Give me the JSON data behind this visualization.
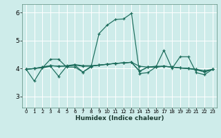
{
  "xlabel": "Humidex (Indice chaleur)",
  "xlim": [
    -0.5,
    23.5
  ],
  "ylim": [
    2.6,
    6.3
  ],
  "xticks": [
    0,
    1,
    2,
    3,
    4,
    5,
    6,
    7,
    8,
    9,
    10,
    11,
    12,
    13,
    14,
    15,
    16,
    17,
    18,
    19,
    20,
    21,
    22,
    23
  ],
  "yticks": [
    3,
    4,
    5,
    6
  ],
  "bg": "#ceecea",
  "grid_color": "#ffffff",
  "lc": "#1a6b5a",
  "series": [
    [
      3.97,
      3.55,
      4.02,
      4.33,
      4.33,
      4.05,
      4.05,
      3.87,
      4.05,
      5.25,
      5.55,
      5.75,
      5.77,
      5.97,
      3.82,
      3.85,
      4.05,
      4.65,
      4.0,
      4.42,
      4.42,
      3.85,
      3.78,
      3.97
    ],
    [
      3.97,
      4.0,
      4.02,
      4.08,
      3.72,
      4.08,
      4.12,
      3.87,
      4.08,
      4.12,
      4.15,
      4.18,
      4.2,
      4.22,
      4.08,
      4.05,
      4.08,
      4.08,
      4.05,
      4.02,
      4.0,
      3.97,
      3.92,
      3.97
    ],
    [
      3.97,
      4.0,
      4.05,
      4.1,
      4.08,
      4.08,
      4.12,
      4.08,
      4.08,
      4.12,
      4.15,
      4.18,
      4.2,
      4.22,
      3.9,
      4.05,
      4.05,
      4.08,
      4.05,
      4.02,
      4.0,
      3.95,
      3.88,
      3.97
    ],
    [
      3.97,
      4.0,
      4.05,
      4.1,
      4.08,
      4.1,
      4.14,
      4.1,
      4.1,
      4.12,
      4.15,
      4.18,
      4.2,
      4.22,
      3.9,
      4.05,
      4.05,
      4.08,
      4.05,
      4.02,
      4.0,
      3.97,
      3.88,
      3.97
    ]
  ]
}
